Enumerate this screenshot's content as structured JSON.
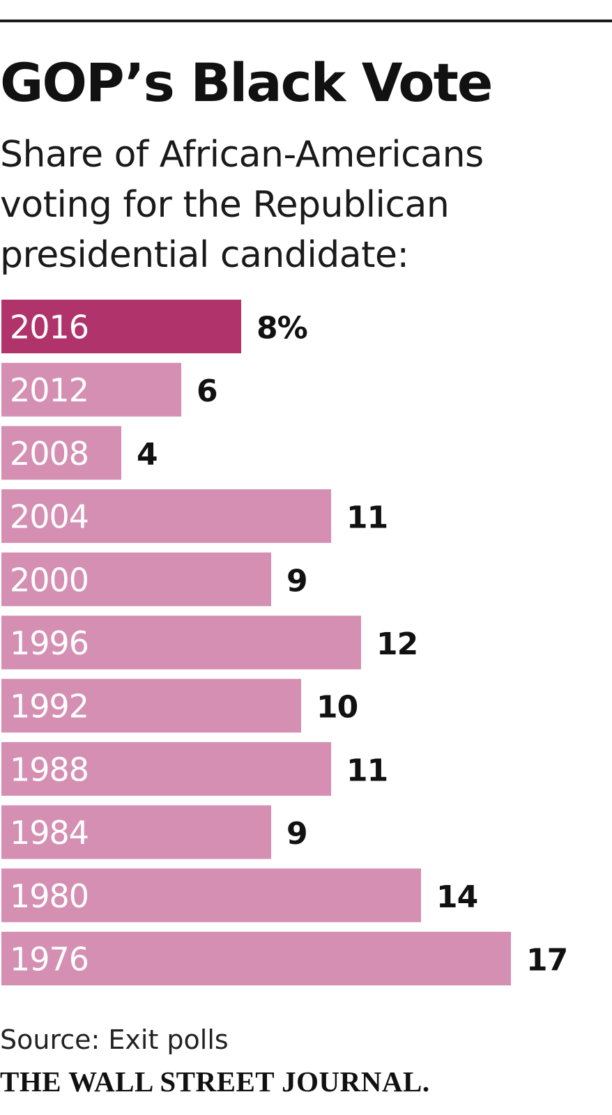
{
  "title": "GOP’s Black Vote",
  "subtitle_lines": [
    "Share of African-Americans",
    "voting for the Republican",
    "presidential candidate:"
  ],
  "source": "Source: Exit polls",
  "brand": "THE WALL STREET JOURNAL.",
  "colors": {
    "highlight": "#b0346b",
    "bar": "#d48fb2",
    "bar_label": "#ffffff",
    "value_label": "#111111"
  },
  "chart_data": {
    "type": "bar",
    "orientation": "horizontal",
    "title": "GOP’s Black Vote",
    "unit": "%",
    "categories": [
      "2016",
      "2012",
      "2008",
      "2004",
      "2000",
      "1996",
      "1992",
      "1988",
      "1984",
      "1980",
      "1976"
    ],
    "values": [
      8,
      6,
      4,
      11,
      9,
      12,
      10,
      11,
      9,
      14,
      17
    ],
    "value_labels": [
      "8%",
      "6",
      "4",
      "11",
      "9",
      "12",
      "10",
      "11",
      "9",
      "14",
      "17"
    ],
    "highlight_index": 0,
    "xlim": [
      0,
      17
    ],
    "grid": false,
    "legend": "none"
  }
}
